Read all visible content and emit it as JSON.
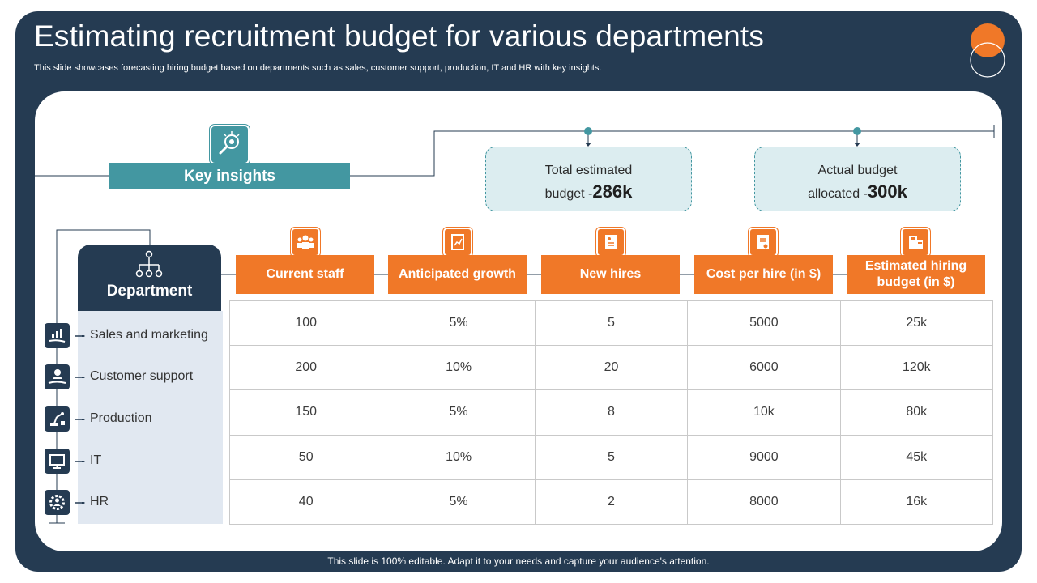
{
  "slide": {
    "title": "Estimating recruitment budget for various departments",
    "subtitle": "This slide showcases forecasting hiring budget based on departments such as sales, customer support, production, IT and HR with key insights.",
    "footer": "This slide is 100% editable. Adapt it to your needs and capture your audience's attention."
  },
  "colors": {
    "navy": "#253b52",
    "teal": "#4397a1",
    "orange": "#f07828",
    "light_blue": "#e1e8f1"
  },
  "key_insights": {
    "label": "Key insights",
    "icon": "magnifier-lightbulb-icon",
    "total_estimated": {
      "line1": "Total estimated",
      "line2": "budget -",
      "value": "286k"
    },
    "actual_allocated": {
      "line1": "Actual budget",
      "line2": "allocated -",
      "value": "300k"
    }
  },
  "department": {
    "header": "Department",
    "icon": "org-chart-icon",
    "items": [
      {
        "name": "Sales and marketing",
        "icon": "chart-hand-icon"
      },
      {
        "name": "Customer support",
        "icon": "support-hand-icon"
      },
      {
        "name": "Production",
        "icon": "robot-arm-icon"
      },
      {
        "name": "IT",
        "icon": "monitor-icon"
      },
      {
        "name": "HR",
        "icon": "people-gear-icon"
      }
    ]
  },
  "table": {
    "columns": [
      {
        "label": "Current staff",
        "icon": "team-icon"
      },
      {
        "label": "Anticipated growth",
        "icon": "growth-document-icon"
      },
      {
        "label": "New hires",
        "icon": "resume-icon"
      },
      {
        "label": "Cost per hire (in $)",
        "icon": "invoice-icon"
      },
      {
        "label": "Estimated hiring budget (in $)",
        "icon": "calculator-icon"
      }
    ],
    "rows": [
      [
        "100",
        "5%",
        "5",
        "5000",
        "25k"
      ],
      [
        "200",
        "10%",
        "20",
        "6000",
        "120k"
      ],
      [
        "150",
        "5%",
        "8",
        "10k",
        "80k"
      ],
      [
        "50",
        "10%",
        "5",
        "9000",
        "45k"
      ],
      [
        "40",
        "5%",
        "2",
        "8000",
        "16k"
      ]
    ]
  }
}
